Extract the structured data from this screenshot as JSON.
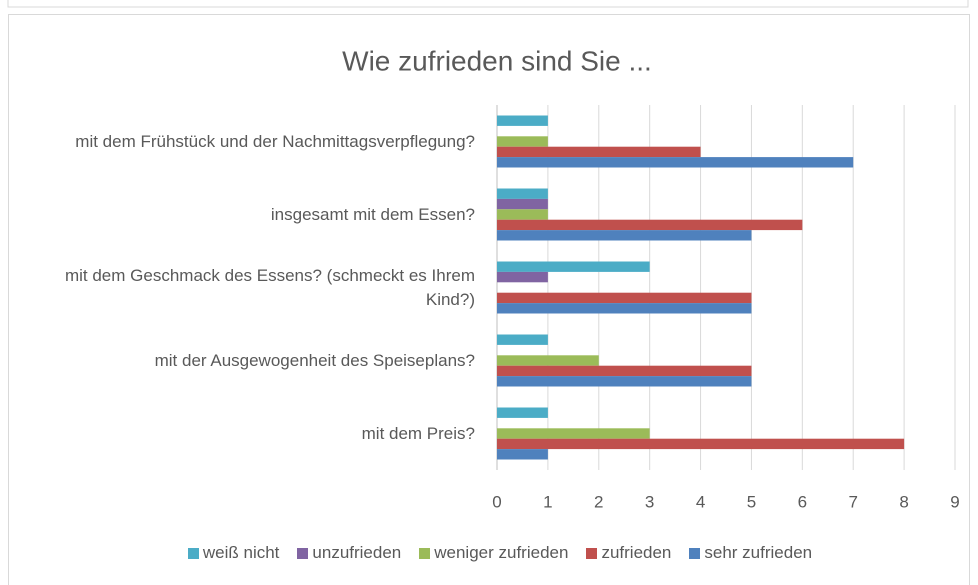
{
  "chart_data": {
    "type": "hbar",
    "title": "Wie zufrieden sind Sie ...",
    "categories": [
      "mit dem Frühstück und der Nachmittagsverpflegung?",
      "insgesamt mit dem Essen?",
      "mit dem Geschmack des Essens? (schmeckt es Ihrem Kind?)",
      "mit der Ausgewogenheit des Speiseplans?",
      "mit dem Preis?"
    ],
    "series": [
      {
        "name": "weiß nicht",
        "color": "#4bacc6",
        "values": [
          1,
          1,
          3,
          1,
          1
        ]
      },
      {
        "name": "unzufrieden",
        "color": "#8064a2",
        "values": [
          0,
          1,
          1,
          0,
          0
        ]
      },
      {
        "name": "weniger zufrieden",
        "color": "#9bbb59",
        "values": [
          1,
          1,
          0,
          2,
          3
        ]
      },
      {
        "name": "zufrieden",
        "color": "#c0504d",
        "values": [
          4,
          6,
          5,
          5,
          8
        ]
      },
      {
        "name": "sehr zufrieden",
        "color": "#4f81bd",
        "values": [
          7,
          5,
          5,
          5,
          1
        ]
      }
    ],
    "xlim": [
      0,
      9
    ],
    "xticks": [
      0,
      1,
      2,
      3,
      4,
      5,
      6,
      7,
      8,
      9
    ],
    "grid": true,
    "legend": "bottom"
  }
}
